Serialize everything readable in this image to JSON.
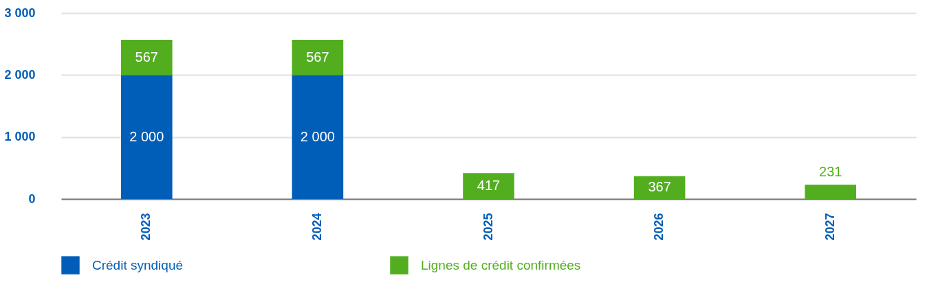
{
  "chart_data": {
    "type": "bar",
    "stacked": true,
    "categories": [
      "2023",
      "2024",
      "2025",
      "2026",
      "2027"
    ],
    "series": [
      {
        "name": "Crédit syndiqué",
        "color": "#005eb8",
        "values": [
          2000,
          2000,
          null,
          null,
          null
        ],
        "value_labels": [
          "2 000",
          "2 000",
          null,
          null,
          null
        ]
      },
      {
        "name": "Lignes de crédit confirmées",
        "color": "#52ae1e",
        "values": [
          567,
          567,
          417,
          367,
          231
        ],
        "value_labels": [
          "567",
          "567",
          "417",
          "367",
          "231"
        ]
      }
    ],
    "ylim": [
      0,
      3000
    ],
    "yticks": [
      0,
      {
        "value": 1000,
        "label": "1 000"
      },
      {
        "value": 2000,
        "label": "2 000"
      },
      {
        "value": 3000,
        "label": "3 000"
      }
    ],
    "grid": "y",
    "legend": "bottom"
  }
}
